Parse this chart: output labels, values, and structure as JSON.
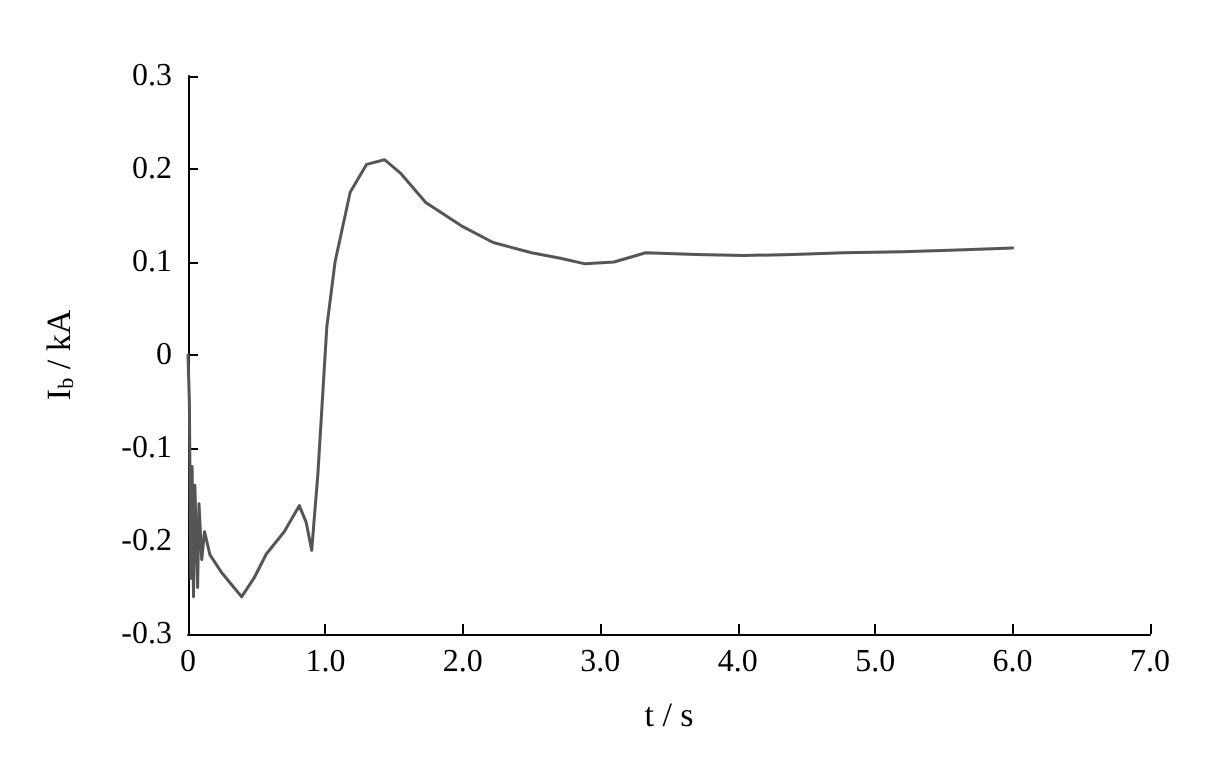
{
  "chart_data": {
    "type": "line",
    "xlabel": "t / s",
    "ylabel": "I$_{b}$ / kA",
    "color": "#555555",
    "x": [
      0,
      0.01,
      0.02,
      0.03,
      0.04,
      0.05,
      0.07,
      0.08,
      0.1,
      0.12,
      0.16,
      0.25,
      0.39,
      0.48,
      0.57,
      0.7,
      0.81,
      0.86,
      0.9,
      0.945,
      1.01,
      1.07,
      1.18,
      1.3,
      1.43,
      1.55,
      1.73,
      2.0,
      2.22,
      2.5,
      2.71,
      2.89,
      3.1,
      3.33,
      3.7,
      4.04,
      4.4,
      4.77,
      5.2,
      5.6,
      6.0
    ],
    "values": [
      0,
      -0.05,
      -0.24,
      -0.12,
      -0.26,
      -0.14,
      -0.25,
      -0.16,
      -0.22,
      -0.19,
      -0.215,
      -0.235,
      -0.26,
      -0.24,
      -0.214,
      -0.19,
      -0.162,
      -0.18,
      -0.21,
      -0.128,
      0.03,
      0.1,
      0.175,
      0.205,
      0.21,
      0.195,
      0.164,
      0.138,
      0.121,
      0.11,
      0.104,
      0.098,
      0.1,
      0.11,
      0.108,
      0.107,
      0.108,
      0.11,
      0.111,
      0.113,
      0.115
    ],
    "xlim": [
      0,
      7
    ],
    "xticks": [
      0,
      {
        "value": 1,
        "label": "1.0"
      },
      {
        "value": 2,
        "label": "2.0"
      },
      {
        "value": 3,
        "label": "3.0"
      },
      {
        "value": 4,
        "label": "4.0"
      },
      {
        "value": 5,
        "label": "5.0"
      },
      {
        "value": 6,
        "label": "6.0"
      },
      {
        "value": 7,
        "label": "7.0"
      }
    ],
    "ylim": [
      -0.3,
      0.3
    ],
    "yticks": [
      -0.3,
      -0.2,
      -0.1,
      0,
      0.1,
      0.2,
      0.3
    ],
    "grid": false,
    "marker": "none",
    "line_style": "solid"
  }
}
